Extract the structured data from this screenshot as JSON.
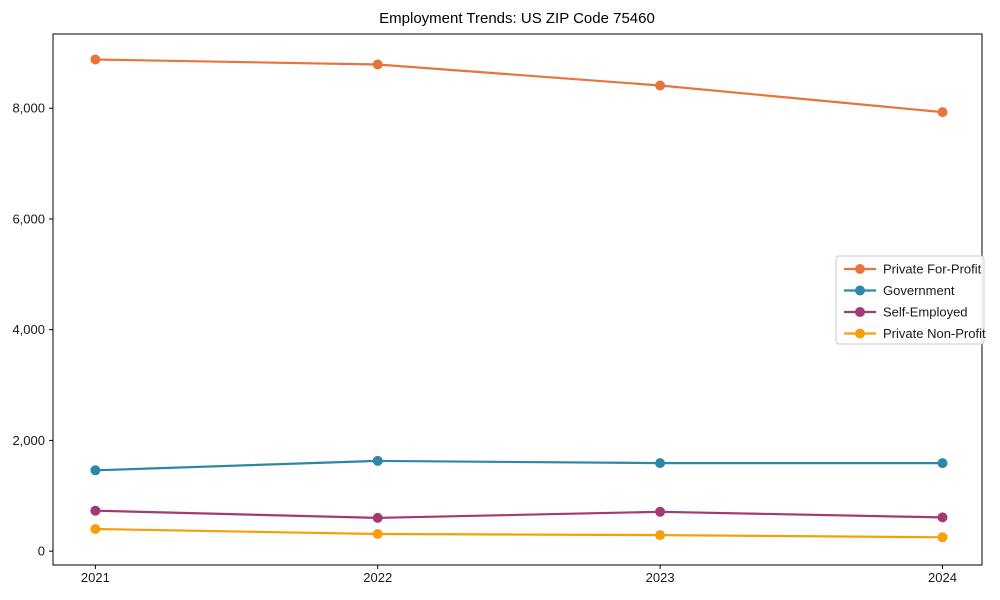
{
  "figure": {
    "title": "Employment Trends: US ZIP Code 75460"
  },
  "chart_data": {
    "type": "line",
    "title": "Employment Trends: US ZIP Code 75460",
    "xlabel": "",
    "ylabel": "",
    "x": [
      2021,
      2022,
      2023,
      2024
    ],
    "x_tick_labels": [
      "2021",
      "2022",
      "2023",
      "2024"
    ],
    "y_ticks": [
      0,
      2000,
      4000,
      6000,
      8000
    ],
    "y_tick_labels": [
      "0",
      "2,000",
      "4,000",
      "6,000",
      "8,000"
    ],
    "xlim": [
      2020.85,
      2024.14
    ],
    "ylim": [
      -250,
      9340
    ],
    "grid": false,
    "legend_position": "center right",
    "marker": "circle",
    "series": [
      {
        "name": "Private For-Profit",
        "color": "#E8743B",
        "values": [
          8880,
          8790,
          8410,
          7930
        ]
      },
      {
        "name": "Government",
        "color": "#2E86AB",
        "values": [
          1460,
          1630,
          1590,
          1590
        ]
      },
      {
        "name": "Self-Employed",
        "color": "#A23B72",
        "values": [
          730,
          600,
          710,
          610
        ]
      },
      {
        "name": "Private Non-Profit",
        "color": "#F5A00A",
        "values": [
          400,
          310,
          290,
          250
        ]
      }
    ],
    "colors": {
      "axis": "#000000",
      "tick_text": "#1a1a1a",
      "legend_border": "#cccccc",
      "background": "#ffffff"
    }
  }
}
